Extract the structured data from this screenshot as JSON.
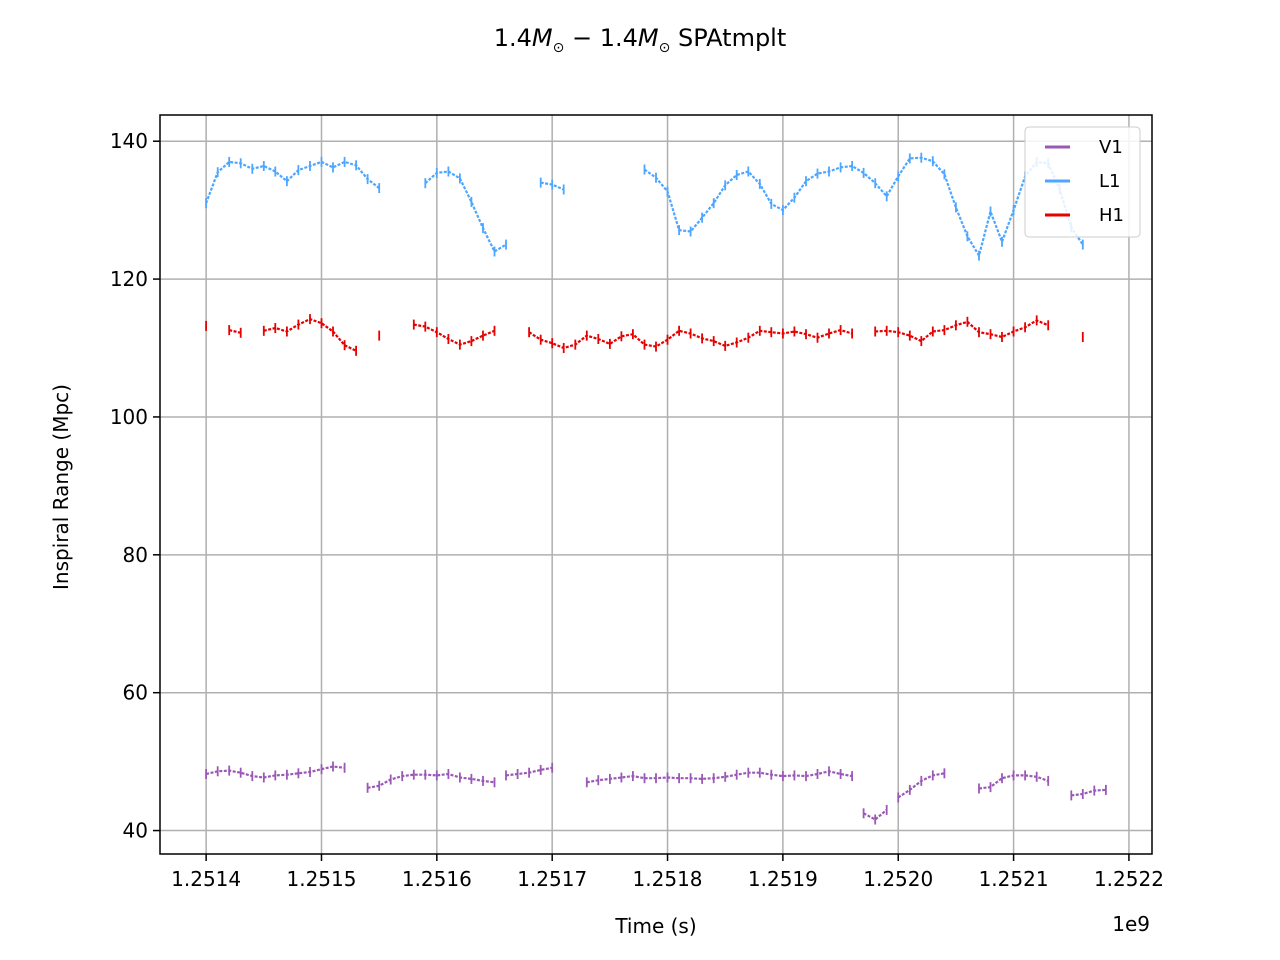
{
  "chart_data": {
    "type": "scatter",
    "title_parts": {
      "n1": "1.4",
      "m1": "M",
      "s1": "⊙",
      "dash": " − ",
      "n2": "1.4",
      "m2": "M",
      "s2": "⊙",
      "suffix": " SPAtmplt"
    },
    "xlabel": "Time (s)",
    "ylabel": "Inspiral Range (Mpc)",
    "x_offset_label": "1e9",
    "x_ticks": [
      1.2514,
      1.2515,
      1.2516,
      1.2517,
      1.2518,
      1.2519,
      1.252,
      1.2521,
      1.2522
    ],
    "x_tick_labels": [
      "1.2514",
      "1.2515",
      "1.2516",
      "1.2517",
      "1.2518",
      "1.2519",
      "1.2520",
      "1.2521",
      "1.2522"
    ],
    "y_ticks": [
      40,
      60,
      80,
      100,
      120,
      140
    ],
    "y_tick_labels": [
      "40",
      "60",
      "80",
      "100",
      "120",
      "140"
    ],
    "xlim": [
      1.25136,
      1.25222
    ],
    "ylim": [
      36.6,
      143.8
    ],
    "grid": true,
    "legend_position": "upper right",
    "legend": [
      {
        "name": "V1",
        "color": "#9b59b6"
      },
      {
        "name": "L1",
        "color": "#4da6ff"
      },
      {
        "name": "H1",
        "color": "#e60000"
      }
    ],
    "series": [
      {
        "name": "V1",
        "color": "#9b59b6",
        "segments": [
          {
            "x": [
              1.2514,
              1.25141,
              1.25142,
              1.25143,
              1.25144,
              1.25145,
              1.25146,
              1.25147,
              1.25148,
              1.25149,
              1.2515,
              1.25151,
              1.25152
            ],
            "y": [
              48.2,
              48.6,
              48.7,
              48.4,
              47.9,
              47.7,
              48.0,
              48.1,
              48.3,
              48.5,
              48.9,
              49.3,
              49.1
            ]
          },
          {
            "x": [
              1.25154,
              1.25155,
              1.25156,
              1.25157,
              1.25158,
              1.25159,
              1.2516,
              1.25161,
              1.25162,
              1.25163,
              1.25164,
              1.25165
            ],
            "y": [
              46.2,
              46.5,
              47.4,
              47.9,
              48.1,
              48.1,
              48.0,
              48.2,
              47.7,
              47.5,
              47.2,
              47.0
            ]
          },
          {
            "x": [
              1.25166,
              1.25167,
              1.25168,
              1.25169,
              1.2517
            ],
            "y": [
              48.0,
              48.2,
              48.4,
              48.8,
              49.1
            ]
          },
          {
            "x": [
              1.25173,
              1.25174,
              1.25175,
              1.25176,
              1.25177,
              1.25178,
              1.25179,
              1.2518,
              1.25181,
              1.25182,
              1.25183,
              1.25184,
              1.25185,
              1.25186,
              1.25187,
              1.25188,
              1.25189,
              1.2519,
              1.25191,
              1.25192,
              1.25193,
              1.25194,
              1.25195,
              1.25196
            ],
            "y": [
              47.0,
              47.3,
              47.5,
              47.7,
              47.9,
              47.6,
              47.6,
              47.7,
              47.6,
              47.6,
              47.5,
              47.6,
              47.8,
              48.1,
              48.4,
              48.4,
              48.1,
              47.9,
              48.0,
              47.9,
              48.2,
              48.6,
              48.2,
              47.9
            ]
          },
          {
            "x": [
              1.25197,
              1.25198,
              1.25199
            ],
            "y": [
              42.5,
              41.6,
              43.0
            ]
          },
          {
            "x": [
              1.252,
              1.25201,
              1.25202,
              1.25203,
              1.25204
            ],
            "y": [
              44.8,
              45.9,
              47.2,
              48.0,
              48.3
            ]
          },
          {
            "x": [
              1.25207,
              1.25208,
              1.25209,
              1.2521,
              1.25211,
              1.25212,
              1.25213
            ],
            "y": [
              46.1,
              46.3,
              47.6,
              48.0,
              48.0,
              47.8,
              47.2
            ]
          },
          {
            "x": [
              1.25215,
              1.25216,
              1.25217,
              1.25218
            ],
            "y": [
              45.1,
              45.3,
              45.8,
              45.9
            ]
          }
        ]
      },
      {
        "name": "L1",
        "color": "#4da6ff",
        "segments": [
          {
            "x": [
              1.2514,
              1.25141,
              1.25142,
              1.25143,
              1.25144,
              1.25145,
              1.25146,
              1.25147,
              1.25148,
              1.25149,
              1.2515,
              1.25151,
              1.25152,
              1.25153,
              1.25154,
              1.25155
            ],
            "y": [
              131.0,
              135.5,
              137.0,
              136.8,
              136.0,
              136.4,
              135.6,
              134.2,
              135.8,
              136.4,
              137.0,
              136.2,
              137.0,
              136.5,
              134.5,
              133.2
            ]
          },
          {
            "x": [
              1.25159,
              1.2516,
              1.25161,
              1.25162,
              1.25163,
              1.25164,
              1.25165,
              1.25166
            ],
            "y": [
              133.9,
              135.4,
              135.6,
              134.6,
              131.2,
              127.4,
              124.0,
              125.0
            ]
          },
          {
            "x": [
              1.25169,
              1.2517,
              1.25171
            ],
            "y": [
              134.0,
              133.7,
              133.0
            ]
          },
          {
            "x": [
              1.25178,
              1.25179,
              1.2518,
              1.25181,
              1.25182,
              1.25183,
              1.25184,
              1.25185,
              1.25186,
              1.25187,
              1.25188,
              1.25189,
              1.2519,
              1.25191,
              1.25192,
              1.25193,
              1.25194,
              1.25195,
              1.25196,
              1.25197,
              1.25198,
              1.25199,
              1.252,
              1.25201,
              1.25202,
              1.25203,
              1.25204,
              1.25205,
              1.25206,
              1.25207,
              1.25208,
              1.25209,
              1.2521,
              1.25211,
              1.25212,
              1.25213,
              1.25214,
              1.25215,
              1.25216
            ],
            "y": [
              135.9,
              134.7,
              132.7,
              127.1,
              126.9,
              128.9,
              131.0,
              133.6,
              135.1,
              135.6,
              133.8,
              130.9,
              130.0,
              131.8,
              134.2,
              135.3,
              135.6,
              136.2,
              136.4,
              135.4,
              133.9,
              132.0,
              134.9,
              137.5,
              137.6,
              137.1,
              135.2,
              130.4,
              126.2,
              123.4,
              129.8,
              125.4,
              130.0,
              134.9,
              137.0,
              136.8,
              133.0,
              127.5,
              125.0
            ]
          }
        ]
      },
      {
        "name": "H1",
        "color": "#e60000",
        "segments": [
          {
            "x": [
              1.2514
            ],
            "y": [
              113.2
            ]
          },
          {
            "x": [
              1.25142,
              1.25143
            ],
            "y": [
              112.6,
              112.2
            ]
          },
          {
            "x": [
              1.25145,
              1.25146,
              1.25147,
              1.25148,
              1.25149,
              1.2515,
              1.25151,
              1.25152,
              1.25153
            ],
            "y": [
              112.5,
              112.9,
              112.4,
              113.4,
              114.2,
              113.6,
              112.4,
              110.4,
              109.6
            ]
          },
          {
            "x": [
              1.25155
            ],
            "y": [
              111.8
            ]
          },
          {
            "x": [
              1.25158,
              1.25159,
              1.2516,
              1.25161,
              1.25162,
              1.25163,
              1.25164,
              1.25165
            ],
            "y": [
              113.4,
              113.1,
              112.3,
              111.3,
              110.5,
              111.0,
              111.8,
              112.5
            ]
          },
          {
            "x": [
              1.25168,
              1.25169,
              1.2517,
              1.25171,
              1.25172,
              1.25173,
              1.25174,
              1.25175,
              1.25176,
              1.25177,
              1.25178,
              1.25179,
              1.2518,
              1.25181,
              1.25182,
              1.25183,
              1.25184,
              1.25185,
              1.25186,
              1.25187,
              1.25188,
              1.25189,
              1.2519,
              1.25191,
              1.25192,
              1.25193,
              1.25194,
              1.25195,
              1.25196
            ],
            "y": [
              112.3,
              111.2,
              110.7,
              110.0,
              110.5,
              111.8,
              111.3,
              110.6,
              111.7,
              112.0,
              110.5,
              110.2,
              111.2,
              112.5,
              112.1,
              111.4,
              111.0,
              110.3,
              110.8,
              111.5,
              112.5,
              112.3,
              112.1,
              112.4,
              112.0,
              111.5,
              112.1,
              112.6,
              112.1
            ]
          },
          {
            "x": [
              1.25198,
              1.25199,
              1.252,
              1.25201,
              1.25202,
              1.25203,
              1.25204,
              1.25205,
              1.25206,
              1.25207,
              1.25208,
              1.25209,
              1.2521,
              1.25211,
              1.25212,
              1.25213
            ],
            "y": [
              112.4,
              112.5,
              112.3,
              111.8,
              111.0,
              112.4,
              112.6,
              113.3,
              113.8,
              112.3,
              112.0,
              111.6,
              112.4,
              113.0,
              114.0,
              113.3
            ]
          },
          {
            "x": [
              1.25216
            ],
            "y": [
              111.6
            ]
          }
        ]
      }
    ]
  }
}
